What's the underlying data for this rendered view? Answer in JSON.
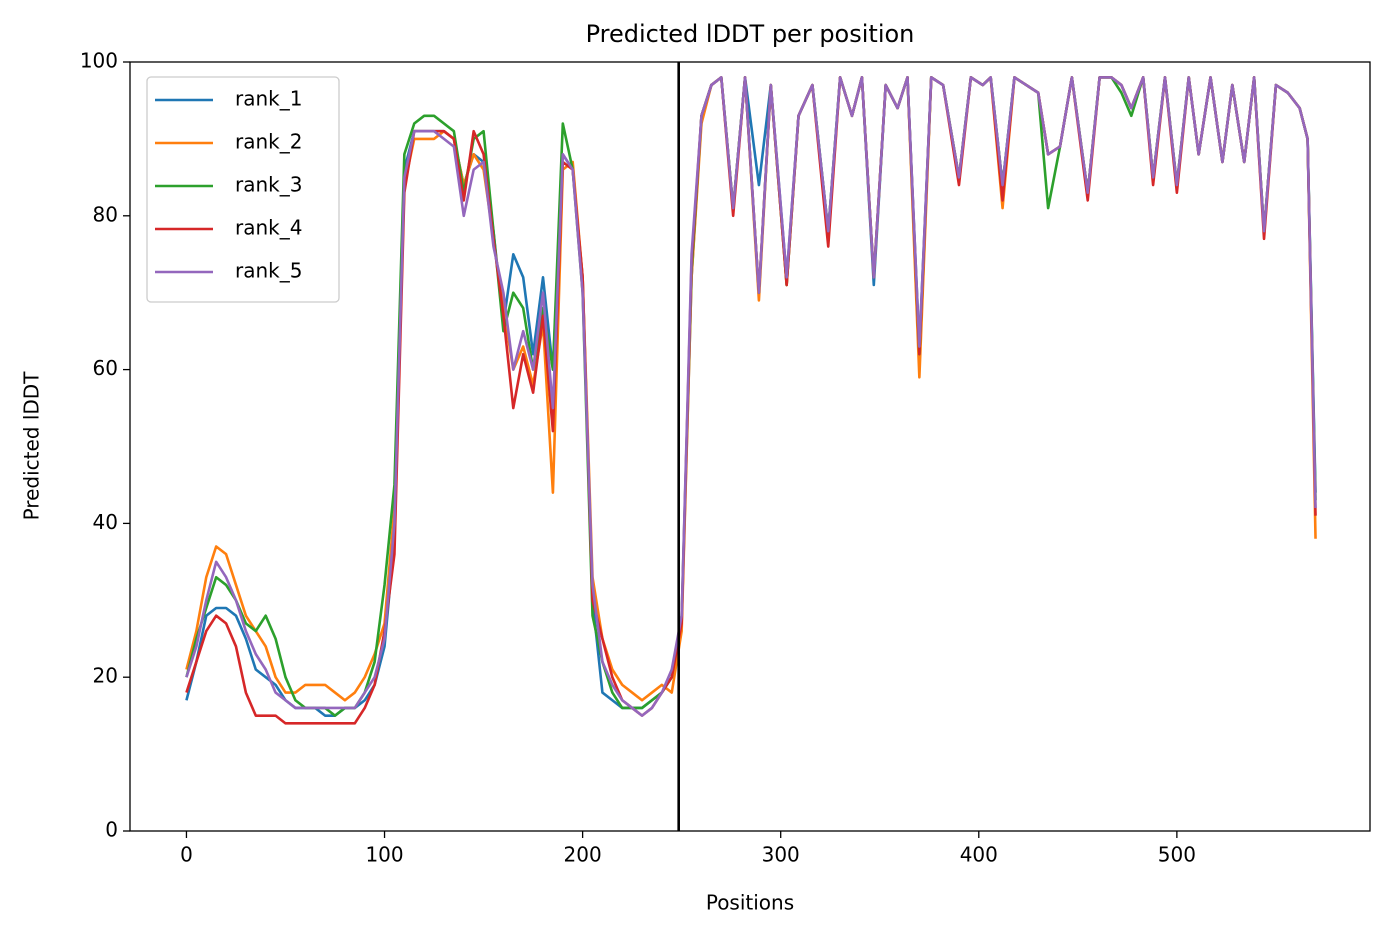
{
  "chart_data": {
    "type": "line",
    "title": "Predicted lDDT per position",
    "x_label": "Positions",
    "y_label": "Predicted lDDT",
    "xlim": [
      -28.5,
      597.5
    ],
    "ylim": [
      0,
      100
    ],
    "xticks": [
      0,
      100,
      200,
      300,
      400,
      500
    ],
    "yticks": [
      0,
      20,
      40,
      60,
      80,
      100
    ],
    "grid": false,
    "legend": "upper left",
    "vlines": [
      248.5
    ],
    "vline_color": "#000000",
    "x": [
      0,
      5,
      10,
      15,
      20,
      25,
      30,
      35,
      40,
      45,
      50,
      55,
      60,
      65,
      70,
      75,
      80,
      85,
      90,
      95,
      100,
      105,
      110,
      115,
      120,
      125,
      130,
      135,
      140,
      145,
      150,
      155,
      160,
      165,
      170,
      175,
      180,
      185,
      190,
      195,
      200,
      205,
      210,
      215,
      220,
      225,
      230,
      235,
      240,
      245,
      250,
      255,
      260,
      265,
      270,
      276,
      282,
      289,
      295,
      303,
      309,
      316,
      324,
      330,
      336,
      341,
      347,
      353,
      359,
      364,
      370,
      376,
      382,
      390,
      396,
      402,
      406,
      412,
      418,
      424,
      430,
      435,
      441,
      447,
      455,
      461,
      467,
      472,
      477,
      483,
      488,
      494,
      500,
      506,
      511,
      517,
      523,
      528,
      534,
      539,
      544,
      550,
      556,
      562,
      566,
      570
    ],
    "series": [
      {
        "name": "rank_1",
        "color": "#1f77b4",
        "values": [
          17,
          22,
          28,
          29,
          29,
          28,
          25,
          21,
          20,
          19,
          17,
          16,
          16,
          16,
          15,
          15,
          16,
          16,
          17,
          19,
          24,
          38,
          86,
          91,
          91,
          91,
          91,
          90,
          84,
          88,
          87,
          78,
          66,
          75,
          72,
          62,
          72,
          60,
          88,
          86,
          72,
          30,
          18,
          17,
          16,
          16,
          16,
          17,
          18,
          20,
          27,
          72,
          93,
          97,
          98,
          81,
          98,
          84,
          97,
          72,
          93,
          97,
          78,
          98,
          93,
          98,
          71,
          97,
          94,
          98,
          63,
          98,
          97,
          85,
          98,
          97,
          98,
          84,
          98,
          97,
          96,
          88,
          89,
          98,
          83,
          98,
          98,
          97,
          94,
          98,
          85,
          98,
          84,
          98,
          88,
          98,
          87,
          97,
          87,
          98,
          78,
          97,
          96,
          94,
          90,
          44
        ]
      },
      {
        "name": "rank_2",
        "color": "#ff7f0e",
        "values": [
          21,
          26,
          33,
          37,
          36,
          32,
          28,
          26,
          24,
          20,
          18,
          18,
          19,
          19,
          19,
          18,
          17,
          18,
          20,
          23,
          27,
          42,
          84,
          90,
          90,
          90,
          91,
          90,
          84,
          88,
          86,
          77,
          68,
          60,
          63,
          58,
          66,
          44,
          86,
          87,
          72,
          33,
          25,
          21,
          19,
          18,
          17,
          18,
          19,
          18,
          26,
          72,
          92,
          97,
          98,
          81,
          98,
          69,
          97,
          71,
          93,
          97,
          77,
          98,
          93,
          98,
          72,
          97,
          94,
          98,
          59,
          98,
          97,
          85,
          98,
          97,
          98,
          81,
          98,
          97,
          96,
          88,
          89,
          98,
          83,
          98,
          98,
          97,
          94,
          98,
          85,
          98,
          84,
          98,
          88,
          98,
          87,
          97,
          87,
          98,
          78,
          97,
          96,
          94,
          90,
          38
        ]
      },
      {
        "name": "rank_3",
        "color": "#2ca02c",
        "values": [
          20,
          25,
          29,
          33,
          32,
          30,
          27,
          26,
          28,
          25,
          20,
          17,
          16,
          16,
          16,
          15,
          16,
          16,
          18,
          22,
          32,
          45,
          88,
          92,
          93,
          93,
          92,
          91,
          83,
          90,
          91,
          78,
          65,
          70,
          68,
          60,
          68,
          60,
          92,
          86,
          70,
          28,
          22,
          18,
          16,
          16,
          16,
          17,
          18,
          20,
          28,
          73,
          93,
          97,
          98,
          81,
          98,
          70,
          97,
          71,
          93,
          97,
          78,
          98,
          93,
          98,
          72,
          97,
          94,
          98,
          62,
          98,
          97,
          85,
          98,
          97,
          98,
          84,
          98,
          97,
          96,
          81,
          89,
          98,
          83,
          98,
          98,
          96,
          93,
          98,
          85,
          98,
          84,
          98,
          88,
          98,
          87,
          97,
          87,
          98,
          78,
          97,
          96,
          94,
          90,
          43
        ]
      },
      {
        "name": "rank_4",
        "color": "#d62728",
        "values": [
          18,
          22,
          26,
          28,
          27,
          24,
          18,
          15,
          15,
          15,
          14,
          14,
          14,
          14,
          14,
          14,
          14,
          14,
          16,
          19,
          26,
          36,
          83,
          91,
          91,
          91,
          91,
          90,
          82,
          91,
          88,
          77,
          67,
          55,
          62,
          57,
          67,
          52,
          87,
          86,
          72,
          30,
          25,
          20,
          17,
          16,
          15,
          16,
          18,
          20,
          27,
          74,
          93,
          97,
          98,
          80,
          98,
          70,
          97,
          71,
          93,
          97,
          76,
          98,
          93,
          98,
          72,
          97,
          94,
          98,
          62,
          98,
          97,
          84,
          98,
          97,
          98,
          82,
          98,
          97,
          96,
          88,
          89,
          98,
          82,
          98,
          98,
          97,
          94,
          98,
          84,
          98,
          83,
          98,
          88,
          98,
          87,
          97,
          87,
          98,
          77,
          97,
          96,
          94,
          90,
          41
        ]
      },
      {
        "name": "rank_5",
        "color": "#9467bd",
        "values": [
          20,
          24,
          30,
          35,
          33,
          30,
          26,
          23,
          21,
          18,
          17,
          16,
          16,
          16,
          16,
          16,
          16,
          16,
          18,
          20,
          25,
          40,
          85,
          91,
          91,
          91,
          90,
          89,
          80,
          86,
          87,
          76,
          70,
          60,
          65,
          60,
          70,
          55,
          88,
          86,
          70,
          32,
          22,
          19,
          17,
          16,
          15,
          16,
          18,
          21,
          28,
          75,
          93,
          97,
          98,
          81,
          98,
          70,
          97,
          72,
          93,
          97,
          78,
          98,
          93,
          98,
          72,
          97,
          94,
          98,
          63,
          98,
          97,
          85,
          98,
          97,
          98,
          84,
          98,
          97,
          96,
          88,
          89,
          98,
          83,
          98,
          98,
          97,
          94,
          98,
          85,
          98,
          84,
          98,
          88,
          98,
          87,
          97,
          87,
          98,
          78,
          97,
          96,
          94,
          90,
          42
        ]
      }
    ]
  }
}
